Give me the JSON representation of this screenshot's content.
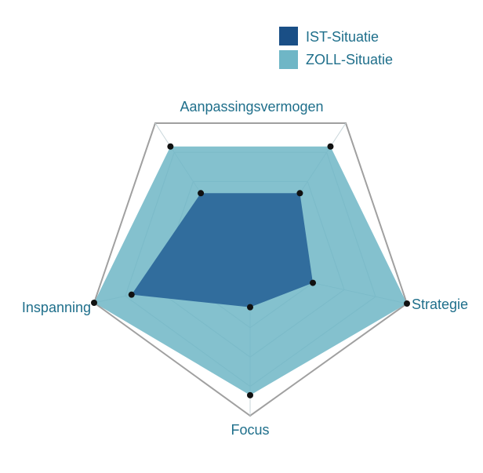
{
  "chart_data": {
    "type": "radar",
    "title": "",
    "axes": [
      "Aanpassingsvermogen",
      "Strategie",
      "Focus",
      "Inspanning"
    ],
    "rlim": [
      0,
      5
    ],
    "grid_levels": 5,
    "grid": true,
    "legend_position": "top-right",
    "series": [
      {
        "name": "IST-Situatie",
        "color": "#2a6699",
        "values": [
          2.6,
          2.0,
          1.3,
          3.8
        ]
      },
      {
        "name": "ZOLL-Situatie",
        "color": "#6fb6c6",
        "values": [
          4.2,
          5.0,
          4.3,
          5.0
        ]
      }
    ]
  }
}
